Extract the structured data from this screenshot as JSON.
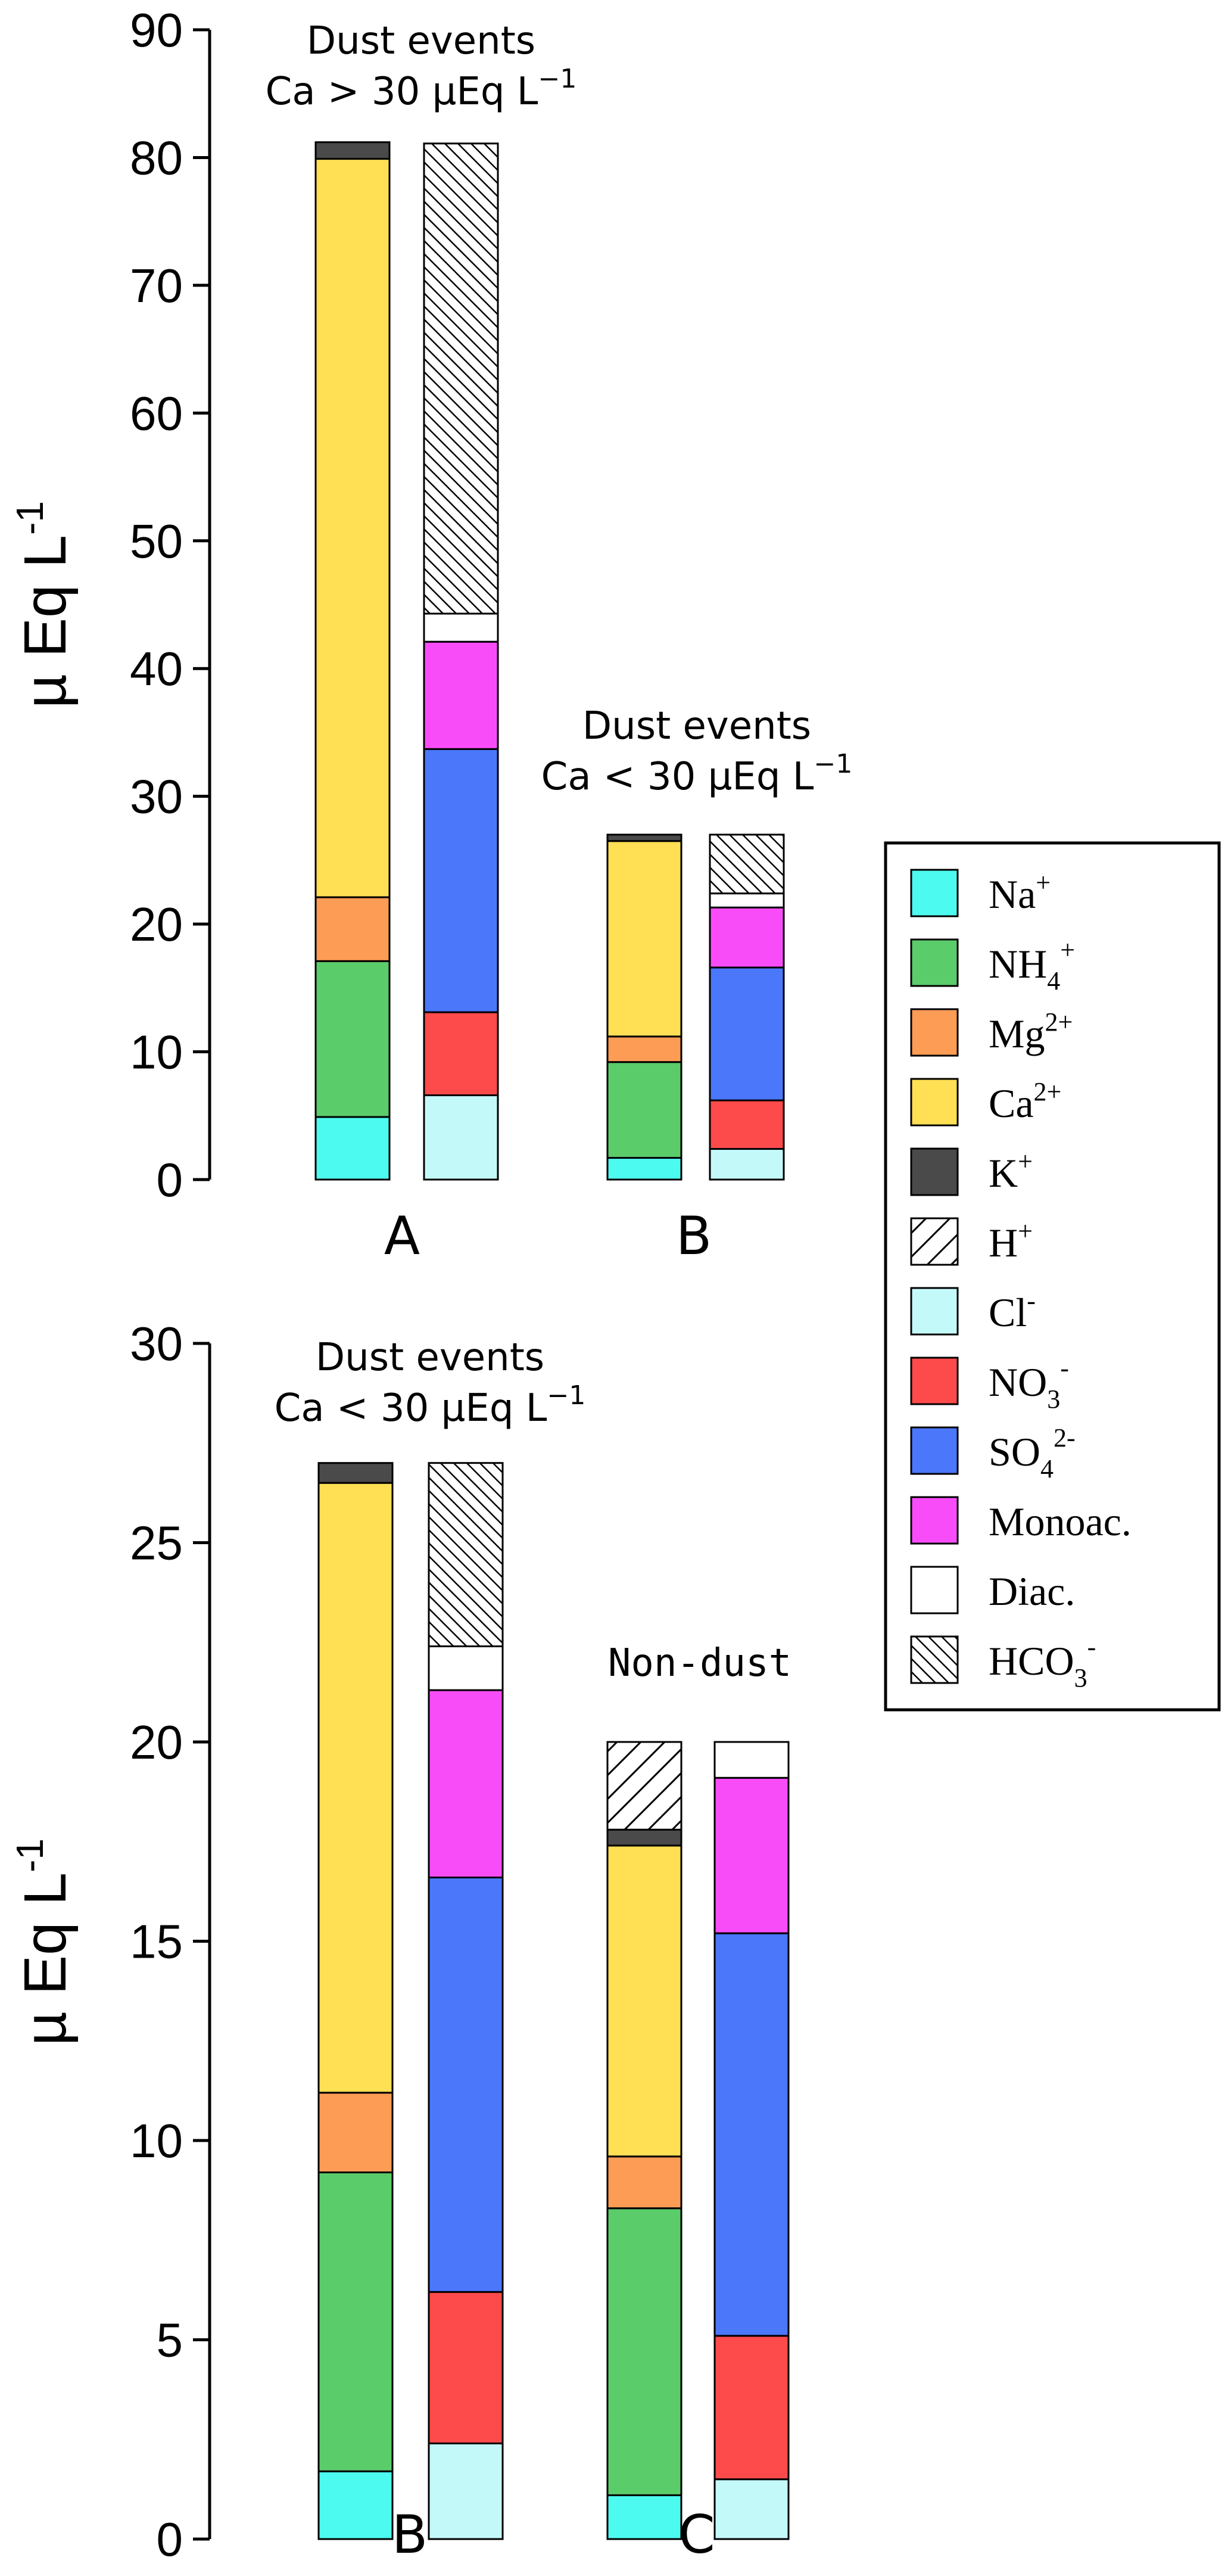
{
  "chart_data": [
    {
      "type": "bar",
      "stacked": true,
      "ylabel": "µ Eq L-1",
      "ylim": [
        0,
        90
      ],
      "yticks": [
        0,
        10,
        20,
        30,
        40,
        50,
        60,
        70,
        80,
        90
      ],
      "categories": [
        "A",
        "B"
      ],
      "annotations": [
        {
          "group": "A",
          "lines": [
            "Dust events",
            "Ca > 30 µEq L−1"
          ]
        },
        {
          "group": "B",
          "lines": [
            "Dust events",
            "Ca < 30 µEq L−1"
          ]
        }
      ],
      "groups": [
        {
          "label": "A",
          "cations": [
            {
              "species": "Na+",
              "value": 4.9
            },
            {
              "species": "NH4+",
              "value": 12.2
            },
            {
              "species": "Mg2+",
              "value": 5.0
            },
            {
              "species": "Ca2+",
              "value": 57.8
            },
            {
              "species": "K+",
              "value": 1.3
            }
          ],
          "anions": [
            {
              "species": "Cl-",
              "value": 6.6
            },
            {
              "species": "NO3-",
              "value": 6.5
            },
            {
              "species": "SO42-",
              "value": 20.6
            },
            {
              "species": "Monoac.",
              "value": 8.4
            },
            {
              "species": "Diac.",
              "value": 2.2
            },
            {
              "species": "HCO3-",
              "value": 36.8
            }
          ]
        },
        {
          "label": "B",
          "cations": [
            {
              "species": "Na+",
              "value": 1.7
            },
            {
              "species": "NH4+",
              "value": 7.5
            },
            {
              "species": "Mg2+",
              "value": 2.0
            },
            {
              "species": "Ca2+",
              "value": 15.3
            },
            {
              "species": "K+",
              "value": 0.5
            }
          ],
          "anions": [
            {
              "species": "Cl-",
              "value": 2.4
            },
            {
              "species": "NO3-",
              "value": 3.8
            },
            {
              "species": "SO42-",
              "value": 10.4
            },
            {
              "species": "Monoac.",
              "value": 4.7
            },
            {
              "species": "Diac.",
              "value": 1.1
            },
            {
              "species": "HCO3-",
              "value": 4.6
            }
          ]
        }
      ]
    },
    {
      "type": "bar",
      "stacked": true,
      "ylabel": "µ Eq L-1",
      "ylim": [
        0,
        30
      ],
      "yticks": [
        0,
        5,
        10,
        15,
        20,
        25,
        30
      ],
      "categories": [
        "B",
        "C"
      ],
      "annotations": [
        {
          "group": "B",
          "lines": [
            "Dust events",
            "Ca < 30 µEq L−1"
          ]
        },
        {
          "group": "C",
          "lines": [
            "Non-dust"
          ]
        }
      ],
      "groups": [
        {
          "label": "B",
          "cations": [
            {
              "species": "Na+",
              "value": 1.7
            },
            {
              "species": "NH4+",
              "value": 7.5
            },
            {
              "species": "Mg2+",
              "value": 2.0
            },
            {
              "species": "Ca2+",
              "value": 15.3
            },
            {
              "species": "K+",
              "value": 0.5
            }
          ],
          "anions": [
            {
              "species": "Cl-",
              "value": 2.4
            },
            {
              "species": "NO3-",
              "value": 3.8
            },
            {
              "species": "SO42-",
              "value": 10.4
            },
            {
              "species": "Monoac.",
              "value": 4.7
            },
            {
              "species": "Diac.",
              "value": 1.1
            },
            {
              "species": "HCO3-",
              "value": 4.6
            }
          ]
        },
        {
          "label": "C",
          "cations": [
            {
              "species": "Na+",
              "value": 1.1
            },
            {
              "species": "NH4+",
              "value": 7.2
            },
            {
              "species": "Mg2+",
              "value": 1.3
            },
            {
              "species": "Ca2+",
              "value": 7.8
            },
            {
              "species": "K+",
              "value": 0.4
            },
            {
              "species": "H+",
              "value": 2.2
            }
          ],
          "anions": [
            {
              "species": "Cl-",
              "value": 1.5
            },
            {
              "species": "NO3-",
              "value": 3.6
            },
            {
              "species": "SO42-",
              "value": 10.1
            },
            {
              "species": "Monoac.",
              "value": 3.9
            },
            {
              "species": "Diac.",
              "value": 0.9
            }
          ]
        }
      ]
    }
  ],
  "legend": {
    "position": "right",
    "entries": [
      {
        "key": "Na+",
        "base": "Na",
        "sup": "+",
        "sub": "",
        "color": "#4dfaef",
        "pattern": "none"
      },
      {
        "key": "NH4+",
        "base": "NH",
        "sup": "+",
        "sub": "4",
        "color": "#5bcc6a",
        "pattern": "none"
      },
      {
        "key": "Mg2+",
        "base": "Mg",
        "sup": "2+",
        "sub": "",
        "color": "#fd9c55",
        "pattern": "none"
      },
      {
        "key": "Ca2+",
        "base": "Ca",
        "sup": "2+",
        "sub": "",
        "color": "#ffdf54",
        "pattern": "none"
      },
      {
        "key": "K+",
        "base": "K",
        "sup": "+",
        "sub": "",
        "color": "#4a4a4a",
        "pattern": "none"
      },
      {
        "key": "H+",
        "base": "H",
        "sup": "+",
        "sub": "",
        "color": "#ffffff",
        "pattern": "hatch-wide"
      },
      {
        "key": "Cl-",
        "base": "Cl",
        "sup": "-",
        "sub": "",
        "color": "#c4f9fa",
        "pattern": "none"
      },
      {
        "key": "NO3-",
        "base": "NO",
        "sup": "-",
        "sub": "3",
        "color": "#fd4a4a",
        "pattern": "none"
      },
      {
        "key": "SO42-",
        "base": "SO",
        "sup": "2-",
        "sub": "4",
        "color": "#4b77fb",
        "pattern": "none"
      },
      {
        "key": "Monoac.",
        "base": "Monoac.",
        "sup": "",
        "sub": "",
        "color": "#f94cf9",
        "pattern": "none"
      },
      {
        "key": "Diac.",
        "base": "Diac.",
        "sup": "",
        "sub": "",
        "color": "#ffffff",
        "pattern": "none"
      },
      {
        "key": "HCO3-",
        "base": "HCO",
        "sup": "-",
        "sub": "3",
        "color": "#ffffff",
        "pattern": "hatch-back"
      }
    ]
  }
}
